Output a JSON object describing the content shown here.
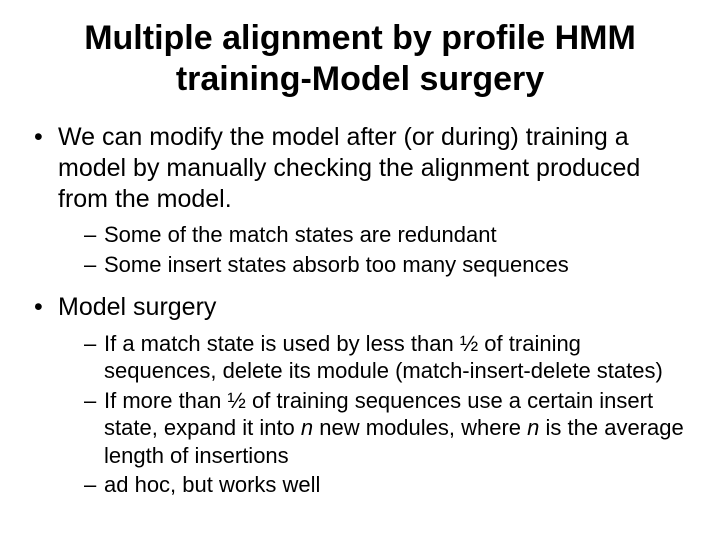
{
  "title": "Multiple alignment by profile HMM training-Model surgery",
  "bullets": {
    "b1": "We can modify the model after (or during) training a model by manually checking the alignment produced from the model.",
    "b1_sub1": "Some of the match states are redundant",
    "b1_sub2": "Some insert states absorb too many sequences",
    "b2": "Model surgery",
    "b2_sub1_part1": "If a match state is used by less than ½ of training sequences, delete its module (match-insert-delete states)",
    "b2_sub2_a": "If more than ½ of training sequences use a certain insert state, expand it into ",
    "b2_sub2_n1": "n",
    "b2_sub2_b": " new modules, where ",
    "b2_sub2_n2": "n",
    "b2_sub2_c": " is the average length of insertions",
    "b2_sub3": "ad hoc, but works well"
  },
  "style": {
    "background_color": "#ffffff",
    "text_color": "#000000",
    "title_fontsize": 34,
    "level1_fontsize": 25,
    "level2_fontsize": 22,
    "font_family": "Arial"
  }
}
